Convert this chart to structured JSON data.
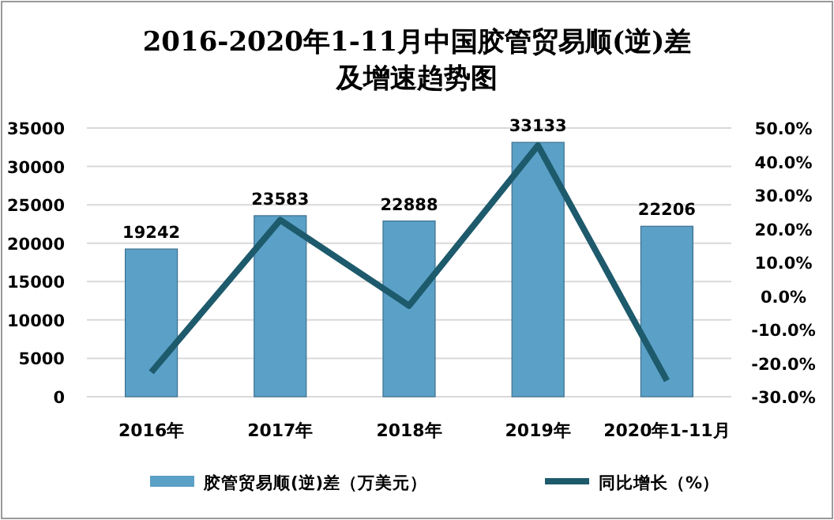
{
  "chart_data": {
    "type": "bar",
    "title": "2016-2020年1-11月中国胶管贸易顺(逆)差及增速趋势图",
    "categories": [
      "2016年",
      "2017年",
      "2018年",
      "2019年",
      "2020年1-11月"
    ],
    "series": [
      {
        "name": "胶管贸易顺(逆)差（万美元）",
        "color": "#5ba0c6",
        "values": [
          19242,
          23583,
          22888,
          33133,
          22206
        ],
        "value_labels": [
          "19242",
          "23583",
          "22888",
          "33133",
          "22206"
        ]
      },
      {
        "name": "同比增长（%）",
        "type": "line",
        "axis": "y2",
        "color": "#1d5a6c",
        "values": [
          -22.7,
          22.6,
          -2.9,
          44.8,
          -25.2
        ]
      }
    ],
    "ylim": [
      0,
      35000
    ],
    "yticks": [
      0,
      5000,
      10000,
      15000,
      20000,
      25000,
      30000,
      35000
    ],
    "y2lim": [
      -30,
      50
    ],
    "y2ticks": [
      {
        "value": -30,
        "label": "-30.0%"
      },
      {
        "value": -20,
        "label": "-20.0%"
      },
      {
        "value": -10,
        "label": "-10.0%"
      },
      {
        "value": 0,
        "label": "0.0%"
      },
      {
        "value": 10,
        "label": "10.0%"
      },
      {
        "value": 20,
        "label": "20.0%"
      },
      {
        "value": 30,
        "label": "30.0%"
      },
      {
        "value": 40,
        "label": "40.0%"
      },
      {
        "value": 50,
        "label": "50.0%"
      }
    ],
    "grid": "y",
    "legend": "bottom",
    "marker": "none"
  }
}
